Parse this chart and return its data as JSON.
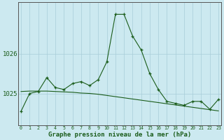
{
  "title": "Graphe pression niveau de la mer (hPa)",
  "background_color": "#cce9f0",
  "line_color": "#1a5c1a",
  "grid_color": "#a8cdd8",
  "x_labels": [
    "0",
    "1",
    "2",
    "3",
    "4",
    "5",
    "6",
    "7",
    "8",
    "9",
    "10",
    "11",
    "12",
    "13",
    "14",
    "15",
    "16",
    "17",
    "18",
    "19",
    "20",
    "21",
    "22",
    "23"
  ],
  "y_ticks": [
    1025,
    1026
  ],
  "y_min": 1024.2,
  "y_max": 1027.3,
  "main_series": [
    1024.55,
    1025.0,
    1025.05,
    1025.4,
    1025.15,
    1025.1,
    1025.25,
    1025.3,
    1025.2,
    1025.35,
    1025.8,
    1027.0,
    1027.0,
    1026.45,
    1026.1,
    1025.5,
    1025.1,
    1024.8,
    1024.75,
    1024.7,
    1024.8,
    1024.8,
    1024.6,
    1024.85
  ],
  "smooth_series": [
    1025.05,
    1025.06,
    1025.06,
    1025.06,
    1025.05,
    1025.04,
    1025.03,
    1025.01,
    1025.0,
    1024.98,
    1024.95,
    1024.92,
    1024.89,
    1024.86,
    1024.83,
    1024.8,
    1024.77,
    1024.74,
    1024.71,
    1024.68,
    1024.65,
    1024.62,
    1024.59,
    1024.56
  ]
}
